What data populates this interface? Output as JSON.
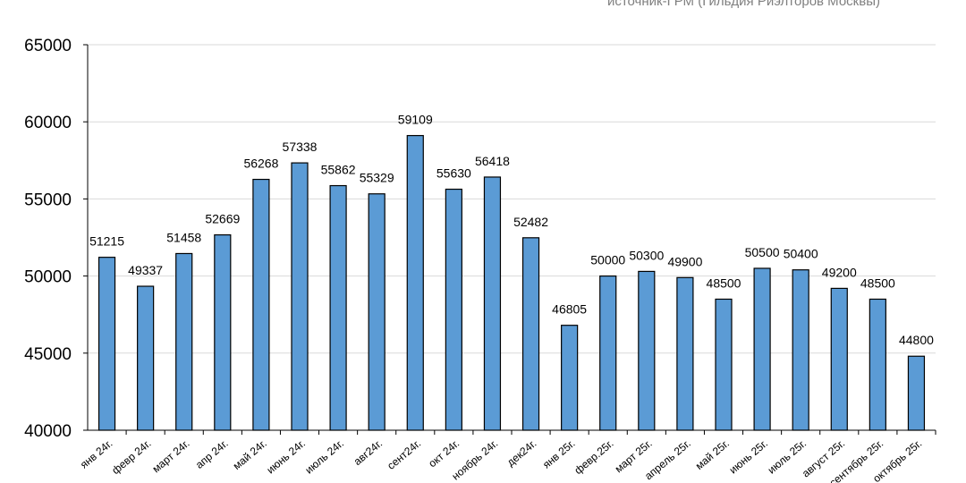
{
  "chart_data": {
    "type": "bar",
    "title": "",
    "subtitle": "источник-ГРМ (Гильдия Риэлторов Москвы)",
    "xlabel": "",
    "ylabel": "",
    "ylim": [
      40000,
      65000
    ],
    "yticks": [
      40000,
      45000,
      50000,
      55000,
      60000,
      65000
    ],
    "grid": true,
    "colors": {
      "bar_fill": "#5b9bd5",
      "bar_stroke": "#000000",
      "grid": "#d9d9d9",
      "axis": "#000000"
    },
    "categories": [
      "янв 24г.",
      "февр 24г.",
      "март 24г.",
      "апр 24г.",
      "май 24г.",
      "июнь 24г.",
      "июль 24г.",
      "авг24г.",
      "сент24г.",
      "окт 24г.",
      "ноябрь 24г.",
      "дек24г.",
      "янв 25г.",
      "февр.25г.",
      "март 25г.",
      "апрель 25г.",
      "май 25г.",
      "июнь 25г.",
      "июль 25г.",
      "август 25г.",
      "сентябрь 25г.",
      "октябрь 25г."
    ],
    "values": [
      51215,
      49337,
      51458,
      52669,
      56268,
      57338,
      55862,
      55329,
      59109,
      55630,
      56418,
      52482,
      46805,
      50000,
      50300,
      49900,
      48500,
      50500,
      50400,
      49200,
      48500,
      44800
    ]
  }
}
